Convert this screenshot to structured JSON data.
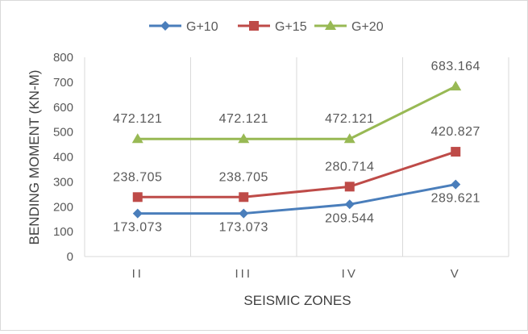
{
  "chart_data": {
    "type": "line",
    "title": "",
    "xlabel": "SEISMIC ZONES",
    "ylabel": "BENDING MOMENT (KN-M)",
    "categories": [
      "II",
      "III",
      "IV",
      "V"
    ],
    "ylim": [
      0,
      800
    ],
    "yticks": [
      "0",
      "100",
      "200",
      "300",
      "400",
      "500",
      "600",
      "700",
      "800"
    ],
    "grid": "vertical",
    "legend_position": "top",
    "series": [
      {
        "name": "G+10",
        "values": [
          173.073,
          173.073,
          209.544,
          289.621
        ],
        "labels": [
          "173.073",
          "173.073",
          "209.544",
          "289.621"
        ],
        "label_position": "below",
        "color": "#4a7ebb",
        "marker": "diamond"
      },
      {
        "name": "G+15",
        "values": [
          238.705,
          238.705,
          280.714,
          420.827
        ],
        "labels": [
          "238.705",
          "238.705",
          "280.714",
          "420.827"
        ],
        "label_position": "above",
        "color": "#be4b48",
        "marker": "square"
      },
      {
        "name": "G+20",
        "values": [
          472.121,
          472.121,
          472.121,
          683.164
        ],
        "labels": [
          "472.121",
          "472.121",
          "472.121",
          "683.164"
        ],
        "label_position": "above",
        "color": "#98b954",
        "marker": "triangle"
      }
    ]
  }
}
